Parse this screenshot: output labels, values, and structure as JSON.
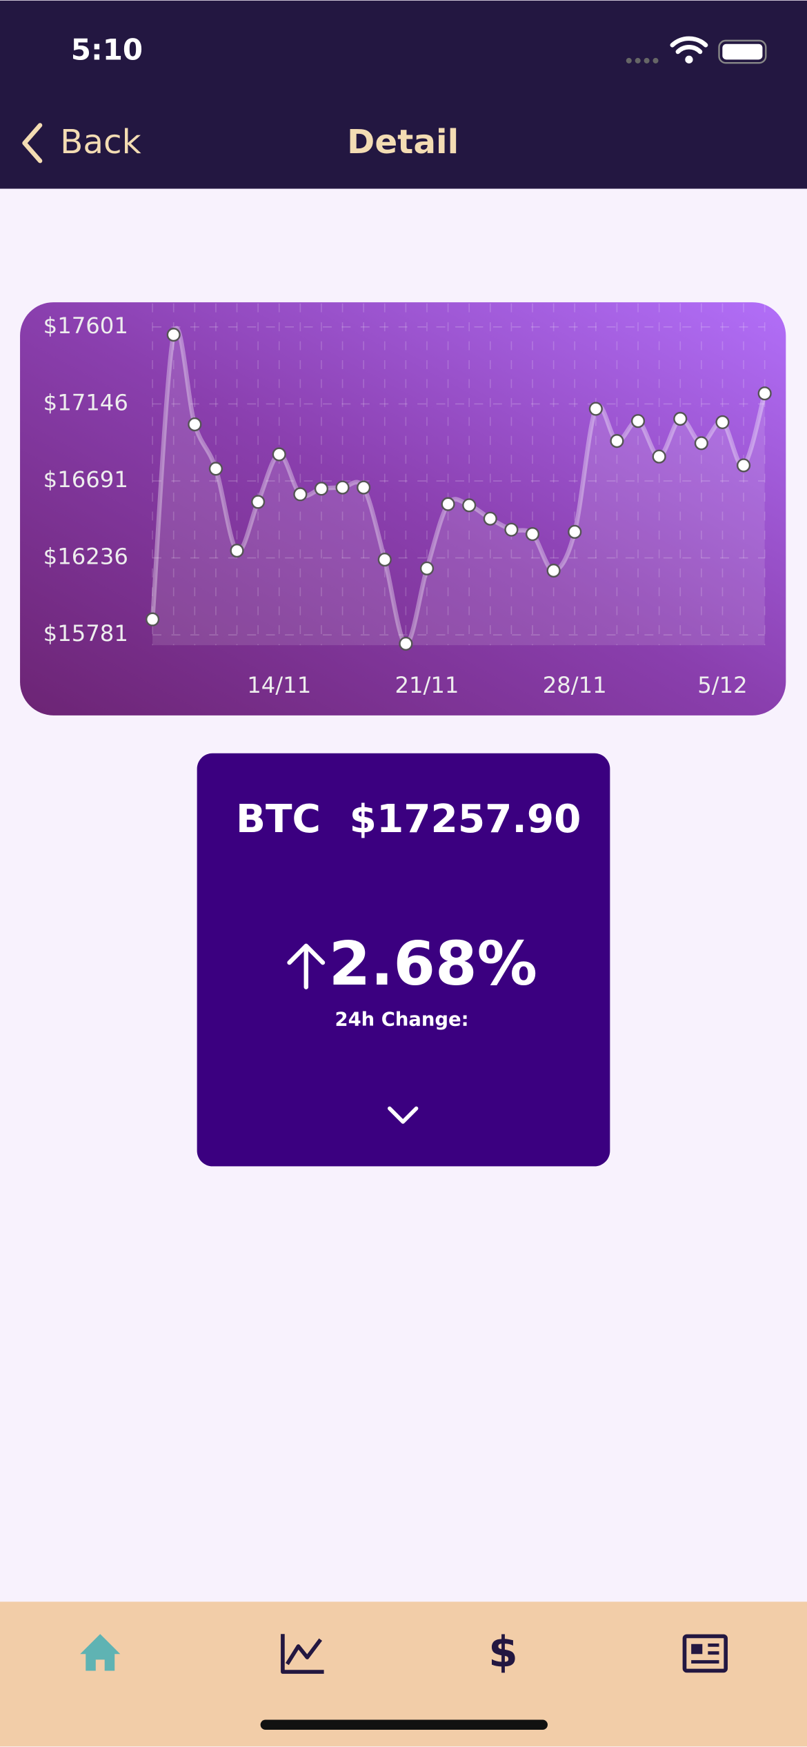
{
  "status": {
    "time": "5:10"
  },
  "nav": {
    "back": "Back",
    "title": "Detail"
  },
  "chart_data": {
    "type": "line",
    "categories": [
      null,
      null,
      null,
      null,
      null,
      null,
      "14/11",
      null,
      null,
      null,
      null,
      null,
      null,
      "21/11",
      null,
      null,
      null,
      null,
      null,
      null,
      "28/11",
      null,
      null,
      null,
      null,
      null,
      null,
      "5/12",
      null,
      null
    ],
    "series": [
      {
        "name": "BTC",
        "color": "#ffffff",
        "values": [
          15873,
          17555,
          17025,
          16763,
          16279,
          16567,
          16848,
          16612,
          16645,
          16652,
          16652,
          16226,
          15729,
          16174,
          16554,
          16547,
          16468,
          16403,
          16377,
          16161,
          16390,
          17117,
          16927,
          17045,
          16835,
          17058,
          16914,
          17038,
          16783,
          17208
        ]
      }
    ],
    "ylim": [
      15720,
      17740
    ],
    "yticks": [
      {
        "value": 15781,
        "label": "$15781"
      },
      {
        "value": 16236,
        "label": "$16236"
      },
      {
        "value": 16691,
        "label": "$16691"
      },
      {
        "value": 17146,
        "label": "$17146"
      },
      {
        "value": 17601,
        "label": "$17601"
      }
    ],
    "grid": true
  },
  "card": {
    "symbol": "BTC",
    "price": "$17257.90",
    "change": "2.68%",
    "change_label": "24h Change:"
  }
}
